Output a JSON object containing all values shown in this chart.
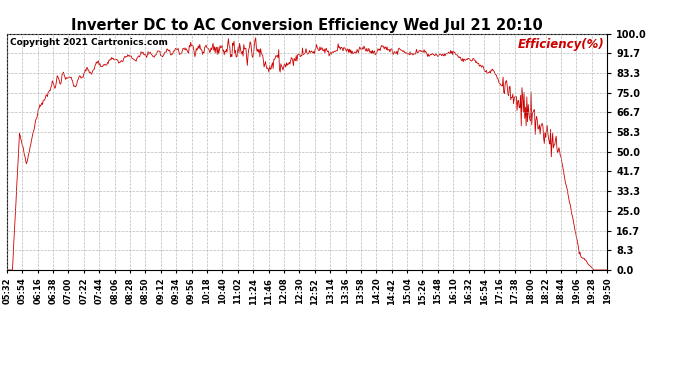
{
  "title": "Inverter DC to AC Conversion Efficiency Wed Jul 21 20:10",
  "copyright": "Copyright 2021 Cartronics.com",
  "legend_label": "Efficiency(%)",
  "ylabel_values": [
    0.0,
    8.3,
    16.7,
    25.0,
    33.3,
    41.7,
    50.0,
    58.3,
    66.7,
    75.0,
    83.3,
    91.7,
    100.0
  ],
  "ymin": 0.0,
  "ymax": 100.0,
  "line_color": "#cc0000",
  "background_color": "#ffffff",
  "grid_color": "#aaaaaa",
  "title_color": "#000000",
  "copyright_color": "#000000",
  "legend_color": "#cc0000",
  "x_tick_labels": [
    "05:32",
    "05:54",
    "06:16",
    "06:38",
    "07:00",
    "07:22",
    "07:44",
    "08:06",
    "08:28",
    "08:50",
    "09:12",
    "09:34",
    "09:56",
    "10:18",
    "10:40",
    "11:02",
    "11:24",
    "11:46",
    "12:08",
    "12:30",
    "12:52",
    "13:14",
    "13:36",
    "13:58",
    "14:20",
    "14:42",
    "15:04",
    "15:26",
    "15:48",
    "16:10",
    "16:32",
    "16:54",
    "17:16",
    "17:38",
    "18:00",
    "18:22",
    "18:44",
    "19:06",
    "19:28",
    "19:50"
  ],
  "figsize": [
    6.9,
    3.75
  ],
  "dpi": 100
}
